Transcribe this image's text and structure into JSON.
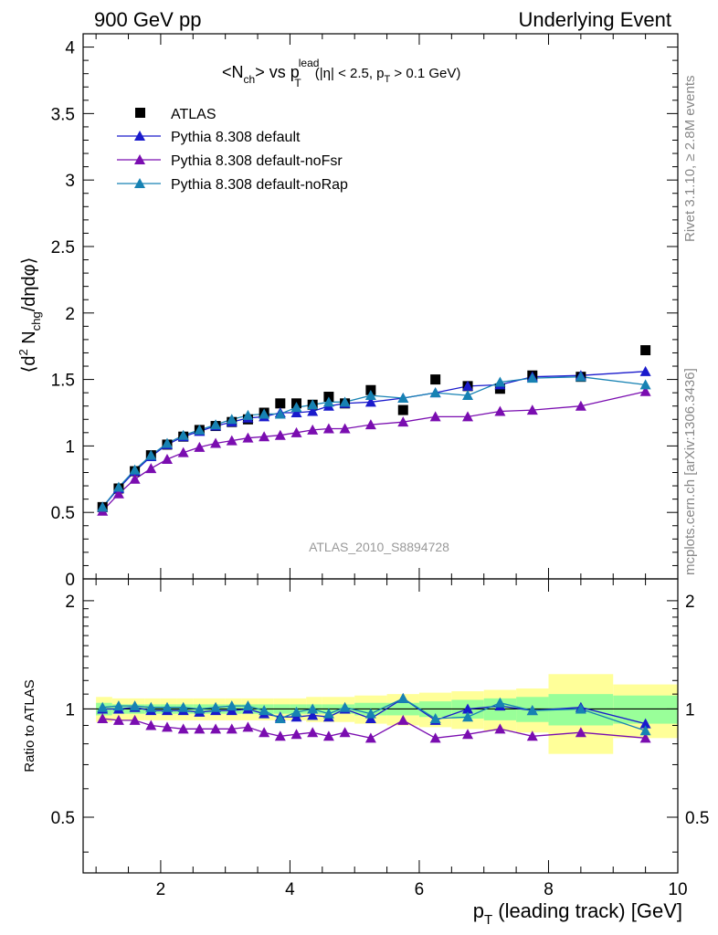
{
  "header": {
    "left": "900 GeV pp",
    "right": "Underlying Event"
  },
  "side_labels": {
    "rivet": "Rivet 3.1.10, ≥ 2.8M events",
    "mcplots": "mcplots.cern.ch [arXiv:1306.3436]"
  },
  "colors": {
    "atlas": "#000000",
    "default": "#1a1acc",
    "noFsr": "#7a0db0",
    "noRap": "#1782b3",
    "band_outer": "#ffff99",
    "band_inner": "#99ff99"
  },
  "chart_data": [
    {
      "type": "line",
      "title": "<N_ch> vs p_T^lead (|η| < 2.5, p_T > 0.1 GeV)",
      "title_parts": {
        "main": "<N",
        "main_sub": "ch",
        "main_rest": "> vs p",
        "pt_sub": "T",
        "pt_sup": "lead",
        "cut_open": "(|η| < 2.5, p",
        "cut_sub": "T",
        "cut_close": " > 0.1 GeV)"
      },
      "ylabel": "⟨d² N_chg/dηdφ⟩",
      "ylabel_parts": {
        "a": "⟨d",
        "sup": "2",
        "b": " N",
        "sub": "chg",
        "c": "/dηdφ⟩"
      },
      "analysis_label": "ATLAS_2010_S8894728",
      "xlim": [
        0.8,
        10.0
      ],
      "ylim": [
        0,
        4.1
      ],
      "yticks": [
        {
          "v": 0,
          "label": "0"
        },
        {
          "v": 0.5,
          "label": "0.5"
        },
        {
          "v": 1,
          "label": "1"
        },
        {
          "v": 1.5,
          "label": "1.5"
        },
        {
          "v": 2,
          "label": "2"
        },
        {
          "v": 2.5,
          "label": "2.5"
        },
        {
          "v": 3,
          "label": "3"
        },
        {
          "v": 3.5,
          "label": "3.5"
        },
        {
          "v": 4,
          "label": "4"
        }
      ],
      "legend": [
        {
          "name": "ATLAS",
          "marker": "square",
          "color_key": "atlas"
        },
        {
          "name": "Pythia 8.308 default",
          "marker": "triangle",
          "color_key": "default"
        },
        {
          "name": "Pythia 8.308 default-noFsr",
          "marker": "triangle",
          "color_key": "noFsr"
        },
        {
          "name": "Pythia 8.308 default-noRap",
          "marker": "triangle",
          "color_key": "noRap"
        }
      ],
      "x": [
        1.1,
        1.35,
        1.6,
        1.85,
        2.1,
        2.35,
        2.6,
        2.85,
        3.1,
        3.35,
        3.6,
        3.85,
        4.1,
        4.35,
        4.6,
        4.85,
        5.25,
        5.75,
        6.25,
        6.75,
        7.25,
        7.75,
        8.5,
        9.5
      ],
      "series": [
        {
          "name": "ATLAS",
          "key": "atlas",
          "values": [
            0.54,
            0.68,
            0.81,
            0.93,
            1.01,
            1.07,
            1.12,
            1.15,
            1.18,
            1.2,
            1.25,
            1.32,
            1.32,
            1.31,
            1.37,
            1.32,
            1.42,
            1.27,
            1.5,
            1.45,
            1.43,
            1.53,
            1.52,
            1.72
          ]
        },
        {
          "name": "Pythia 8.308 default",
          "key": "default",
          "values": [
            0.54,
            0.68,
            0.81,
            0.92,
            1.01,
            1.07,
            1.11,
            1.15,
            1.18,
            1.21,
            1.22,
            1.25,
            1.25,
            1.26,
            1.3,
            1.32,
            1.33,
            1.36,
            1.4,
            1.45,
            1.46,
            1.52,
            1.53,
            1.56
          ]
        },
        {
          "name": "Pythia 8.308 default-noFsr",
          "key": "noFsr",
          "values": [
            0.51,
            0.64,
            0.75,
            0.83,
            0.9,
            0.95,
            0.99,
            1.02,
            1.04,
            1.06,
            1.07,
            1.08,
            1.1,
            1.12,
            1.13,
            1.13,
            1.16,
            1.18,
            1.22,
            1.22,
            1.26,
            1.27,
            1.3,
            1.41
          ]
        },
        {
          "name": "Pythia 8.308 default-noRap",
          "key": "noRap",
          "values": [
            0.54,
            0.69,
            0.82,
            0.93,
            1.02,
            1.08,
            1.12,
            1.16,
            1.2,
            1.23,
            1.24,
            1.24,
            1.29,
            1.31,
            1.33,
            1.33,
            1.38,
            1.36,
            1.4,
            1.38,
            1.48,
            1.51,
            1.52,
            1.46
          ]
        }
      ]
    },
    {
      "type": "line",
      "ylabel": "Ratio to ATLAS",
      "xlabel": "p_T (leading track) [GeV]",
      "xlabel_parts": {
        "a": "p",
        "sub": "T",
        "b": " (leading track) [GeV]"
      },
      "xlim": [
        0.8,
        10.0
      ],
      "ylim": [
        0.35,
        2.3
      ],
      "xticks": [
        {
          "v": 2,
          "label": "2"
        },
        {
          "v": 4,
          "label": "4"
        },
        {
          "v": 6,
          "label": "6"
        },
        {
          "v": 8,
          "label": "8"
        },
        {
          "v": 10,
          "label": "10"
        }
      ],
      "yticks": [
        {
          "v": 0.5,
          "label": "0.5"
        },
        {
          "v": 1,
          "label": "1"
        },
        {
          "v": 2,
          "label": "2"
        }
      ],
      "reference_line": 1.0,
      "bins": [
        [
          1.0,
          1.25
        ],
        [
          1.25,
          1.5
        ],
        [
          1.5,
          1.75
        ],
        [
          1.75,
          2.0
        ],
        [
          2.0,
          2.25
        ],
        [
          2.25,
          2.5
        ],
        [
          2.5,
          2.75
        ],
        [
          2.75,
          3.0
        ],
        [
          3.0,
          3.25
        ],
        [
          3.25,
          3.5
        ],
        [
          3.5,
          3.75
        ],
        [
          3.75,
          4.0
        ],
        [
          4.0,
          4.25
        ],
        [
          4.25,
          4.5
        ],
        [
          4.5,
          4.75
        ],
        [
          4.75,
          5.0
        ],
        [
          5.0,
          5.5
        ],
        [
          5.5,
          6.0
        ],
        [
          6.0,
          6.5
        ],
        [
          6.5,
          7.0
        ],
        [
          7.0,
          7.5
        ],
        [
          7.5,
          8.0
        ],
        [
          8.0,
          9.0
        ],
        [
          9.0,
          10.0
        ]
      ],
      "band_outer": [
        0.08,
        0.07,
        0.07,
        0.07,
        0.07,
        0.07,
        0.07,
        0.07,
        0.07,
        0.07,
        0.07,
        0.07,
        0.07,
        0.08,
        0.08,
        0.08,
        0.09,
        0.1,
        0.11,
        0.12,
        0.13,
        0.14,
        0.25,
        0.17
      ],
      "band_inner": [
        0.04,
        0.03,
        0.03,
        0.03,
        0.03,
        0.03,
        0.03,
        0.03,
        0.03,
        0.03,
        0.03,
        0.03,
        0.03,
        0.03,
        0.03,
        0.03,
        0.04,
        0.04,
        0.05,
        0.06,
        0.07,
        0.08,
        0.1,
        0.09
      ],
      "x": [
        1.1,
        1.35,
        1.6,
        1.85,
        2.1,
        2.35,
        2.6,
        2.85,
        3.1,
        3.35,
        3.6,
        3.85,
        4.1,
        4.35,
        4.6,
        4.85,
        5.25,
        5.75,
        6.25,
        6.75,
        7.25,
        7.75,
        8.5,
        9.5
      ],
      "series": [
        {
          "name": "Pythia 8.308 default",
          "key": "default",
          "values": [
            1.0,
            1.0,
            1.01,
            0.99,
            0.99,
            0.99,
            0.98,
            0.99,
            0.99,
            1.0,
            0.97,
            0.95,
            0.95,
            0.96,
            0.95,
            1.0,
            0.94,
            1.07,
            0.93,
            1.0,
            1.02,
            0.99,
            1.01,
            0.91
          ]
        },
        {
          "name": "Pythia 8.308 default-noFsr",
          "key": "noFsr",
          "values": [
            0.94,
            0.93,
            0.93,
            0.9,
            0.89,
            0.88,
            0.88,
            0.88,
            0.88,
            0.89,
            0.86,
            0.84,
            0.85,
            0.86,
            0.84,
            0.86,
            0.83,
            0.93,
            0.83,
            0.85,
            0.88,
            0.84,
            0.86,
            0.83
          ]
        },
        {
          "name": "Pythia 8.308 default-noRap",
          "key": "noRap",
          "values": [
            1.01,
            1.02,
            1.02,
            1.01,
            1.01,
            1.01,
            1.0,
            1.01,
            1.02,
            1.02,
            0.99,
            0.94,
            0.98,
            1.0,
            0.97,
            1.01,
            0.97,
            1.07,
            0.94,
            0.95,
            1.04,
            0.99,
            1.0,
            0.87
          ]
        }
      ]
    }
  ]
}
